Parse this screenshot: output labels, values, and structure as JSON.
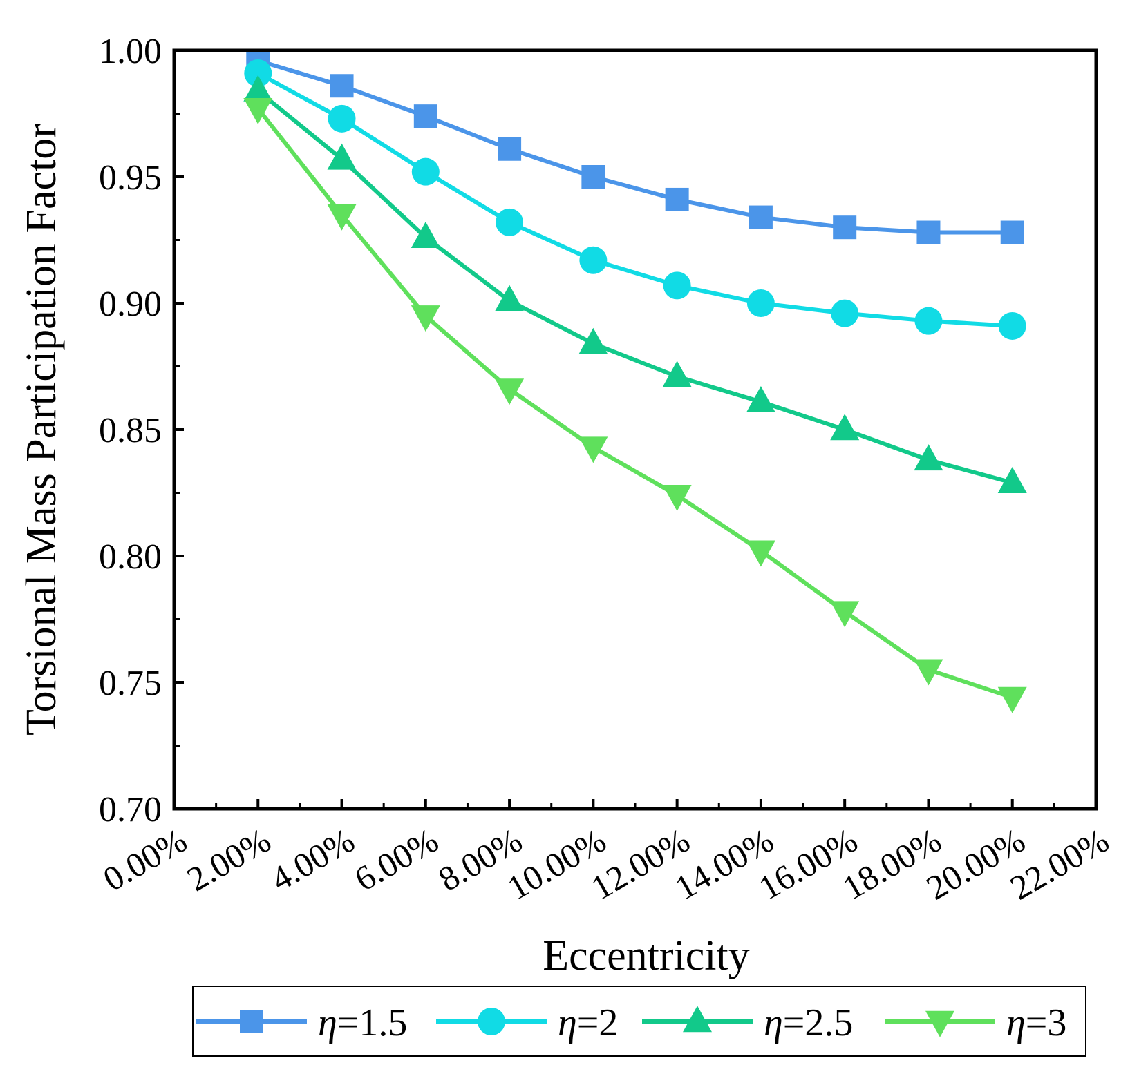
{
  "chart_data": {
    "type": "line",
    "title": "",
    "xlabel": "Eccentricity",
    "ylabel": "Torsional Mass Participation Factor",
    "xlim": [
      0,
      22
    ],
    "ylim": [
      0.7,
      1.0
    ],
    "x_ticks": [
      {
        "value": 0,
        "label": "0.00%"
      },
      {
        "value": 2,
        "label": "2.00%"
      },
      {
        "value": 4,
        "label": "4.00%"
      },
      {
        "value": 6,
        "label": "6.00%"
      },
      {
        "value": 8,
        "label": "8.00%"
      },
      {
        "value": 10,
        "label": "10.00%"
      },
      {
        "value": 12,
        "label": "12.00%"
      },
      {
        "value": 14,
        "label": "14.00%"
      },
      {
        "value": 16,
        "label": "16.00%"
      },
      {
        "value": 18,
        "label": "18.00%"
      },
      {
        "value": 20,
        "label": "20.00%"
      },
      {
        "value": 22,
        "label": "22.00%"
      }
    ],
    "y_ticks": [
      {
        "value": 0.7,
        "label": "0.70"
      },
      {
        "value": 0.75,
        "label": "0.75"
      },
      {
        "value": 0.8,
        "label": "0.80"
      },
      {
        "value": 0.85,
        "label": "0.85"
      },
      {
        "value": 0.9,
        "label": "0.90"
      },
      {
        "value": 0.95,
        "label": "0.95"
      },
      {
        "value": 1.0,
        "label": "1.00"
      }
    ],
    "x": [
      2,
      4,
      6,
      8,
      10,
      12,
      14,
      16,
      18,
      20
    ],
    "series": [
      {
        "name": "η=1.5",
        "symbol": "η",
        "value_label": "=1.5",
        "marker": "square",
        "color": "#4b95e9",
        "values": [
          0.996,
          0.986,
          0.974,
          0.961,
          0.95,
          0.941,
          0.934,
          0.93,
          0.928,
          0.928
        ]
      },
      {
        "name": "η=2",
        "symbol": "η",
        "value_label": "=2",
        "marker": "circle",
        "color": "#11dbe5",
        "values": [
          0.991,
          0.973,
          0.952,
          0.932,
          0.917,
          0.907,
          0.9,
          0.896,
          0.893,
          0.891
        ]
      },
      {
        "name": "η=2.5",
        "symbol": "η",
        "value_label": "=2.5",
        "marker": "triangle-up",
        "color": "#12c98a",
        "values": [
          0.984,
          0.957,
          0.926,
          0.901,
          0.884,
          0.871,
          0.861,
          0.85,
          0.838,
          0.829
        ]
      },
      {
        "name": "η=3",
        "symbol": "η",
        "value_label": "=3",
        "marker": "triangle-down",
        "color": "#5fe05c",
        "values": [
          0.977,
          0.935,
          0.895,
          0.866,
          0.843,
          0.824,
          0.802,
          0.778,
          0.755,
          0.744
        ]
      }
    ],
    "legend_position": "bottom",
    "grid": false
  }
}
